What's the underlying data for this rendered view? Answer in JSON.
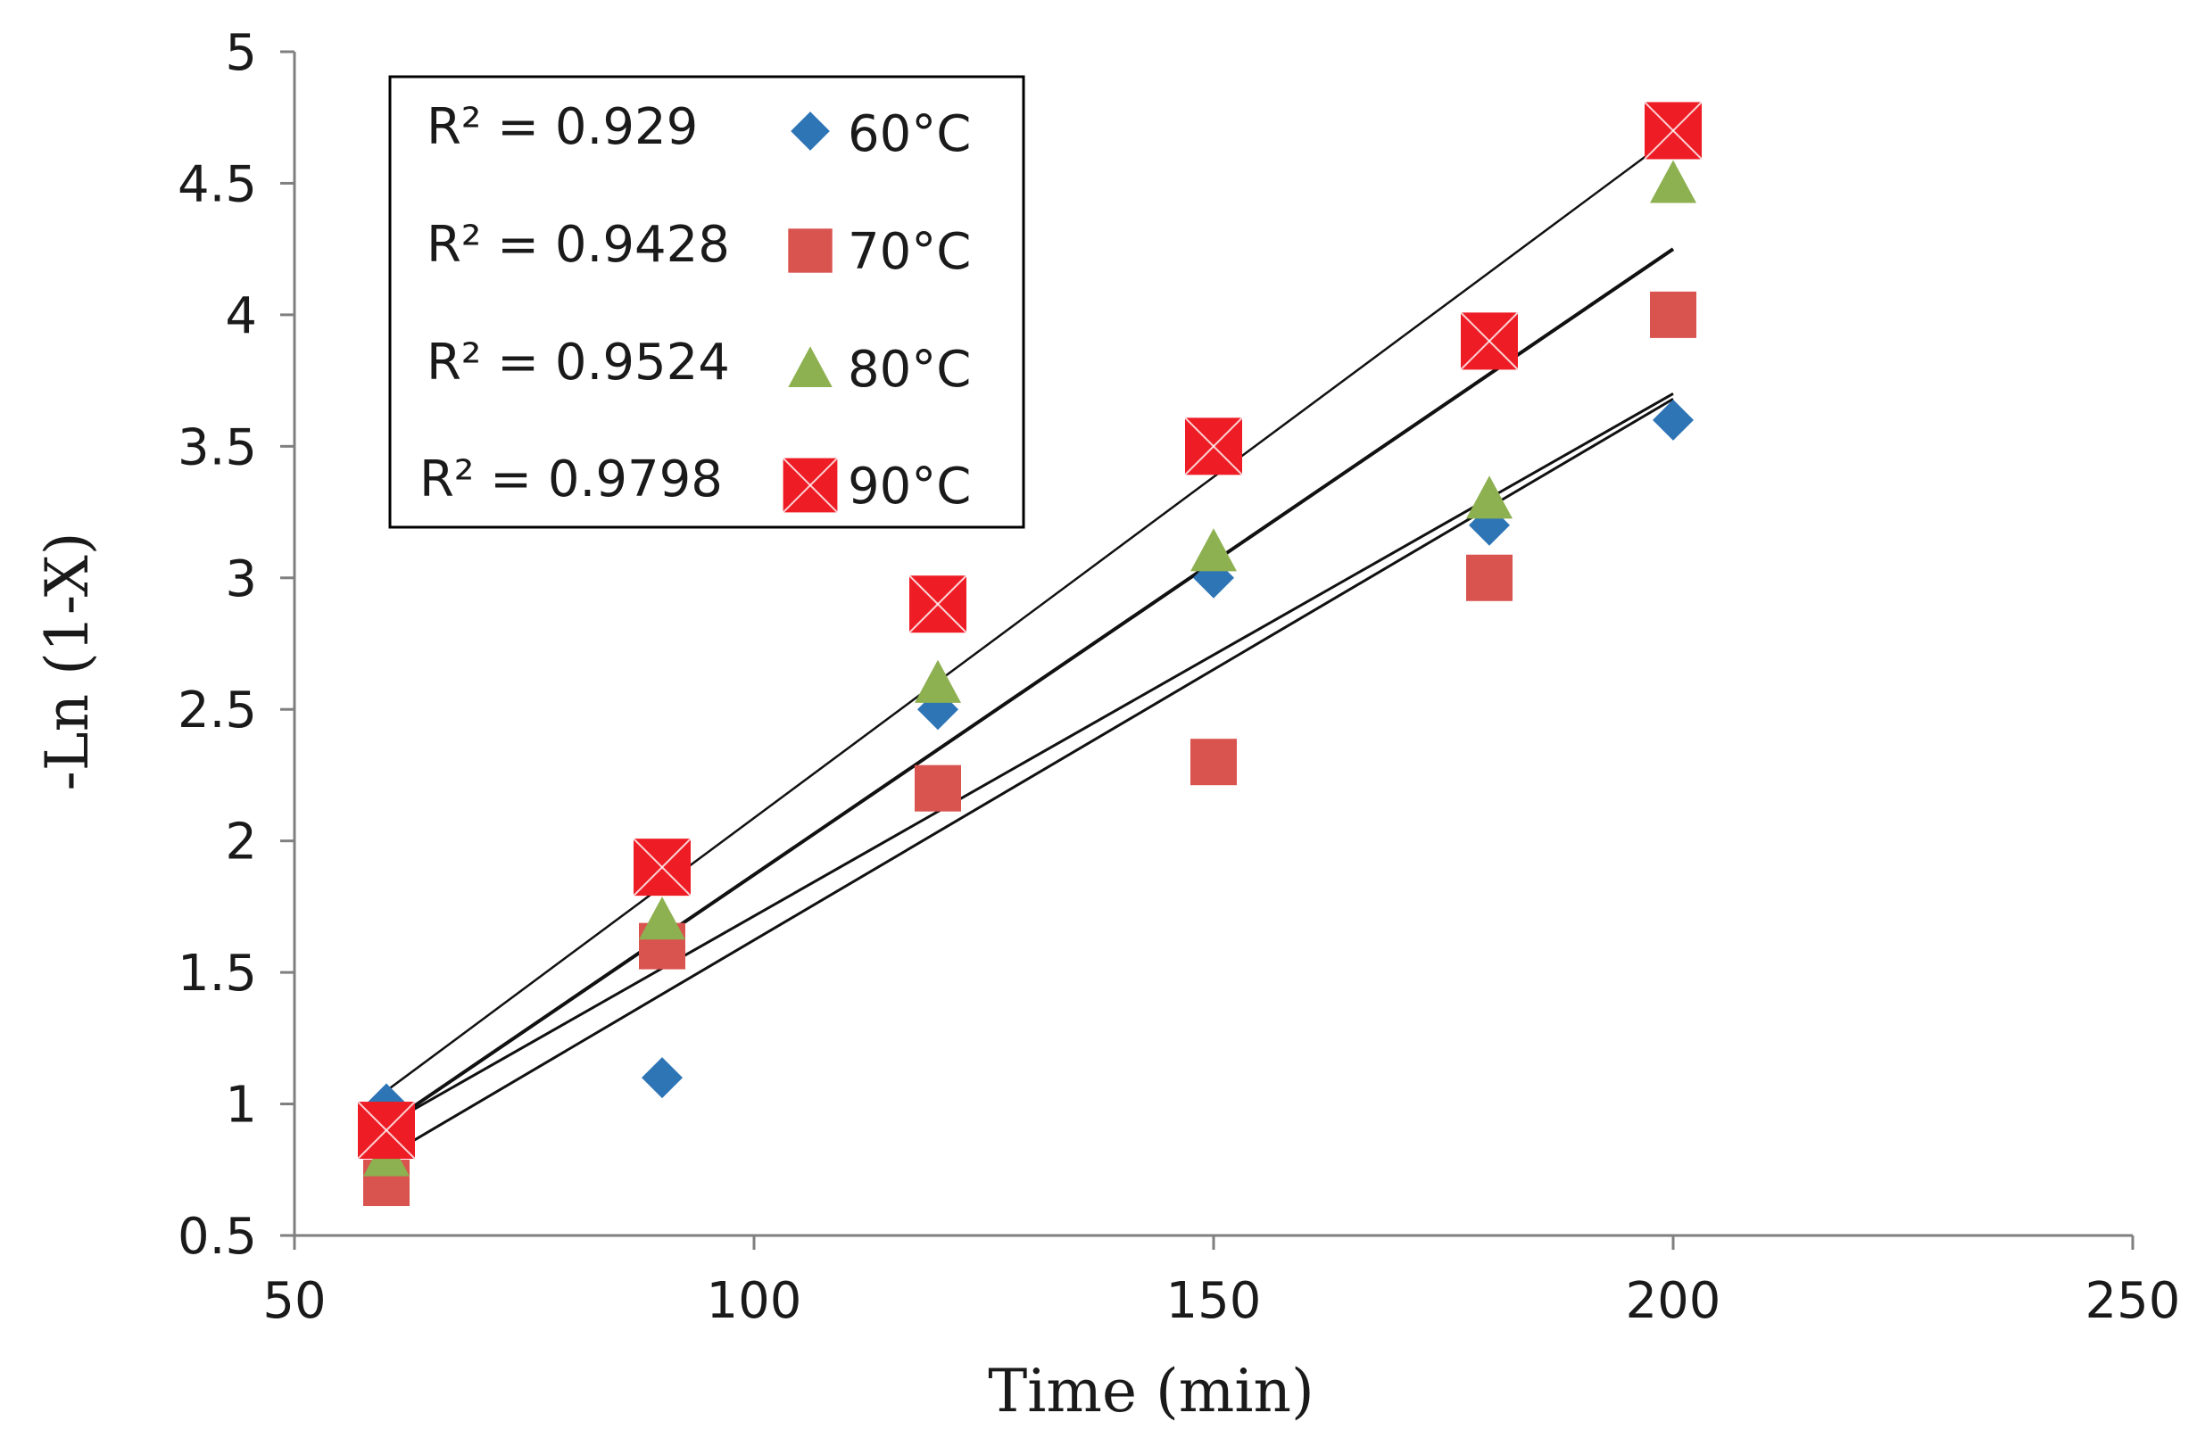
{
  "chart_data": {
    "type": "scatter",
    "xlabel": "Time (min)",
    "ylabel": "-Ln (1-X)",
    "xlim": [
      50,
      250
    ],
    "ylim": [
      0.5,
      5
    ],
    "xticks": [
      50,
      100,
      150,
      200,
      250
    ],
    "yticks": [
      0.5,
      1,
      1.5,
      2,
      2.5,
      3,
      3.5,
      4,
      4.5,
      5
    ],
    "grid": false,
    "legend_position": "top-left",
    "series": [
      {
        "name": "60°C",
        "marker": "diamond",
        "color": "#2e75b6",
        "x": [
          60,
          90,
          120,
          150,
          180,
          200
        ],
        "y": [
          1.0,
          1.1,
          2.5,
          3.0,
          3.2,
          3.6
        ],
        "r2_label": "R² = 0.929",
        "fit_line": {
          "x": [
            60,
            200
          ],
          "y": [
            0.92,
            3.7
          ]
        }
      },
      {
        "name": "70°C",
        "marker": "square",
        "color": "#d9534f",
        "x": [
          60,
          90,
          120,
          150,
          180,
          200
        ],
        "y": [
          0.7,
          1.6,
          2.2,
          2.3,
          3.0,
          4.0
        ],
        "r2_label": "R² = 0.9428",
        "fit_line": {
          "x": [
            60,
            200
          ],
          "y": [
            0.8,
            3.68
          ]
        }
      },
      {
        "name": "80°C",
        "marker": "triangle",
        "color": "#8db050",
        "x": [
          60,
          90,
          120,
          150,
          180,
          200
        ],
        "y": [
          0.8,
          1.7,
          2.6,
          3.1,
          3.3,
          4.5
        ],
        "r2_label": "R² = 0.9524",
        "fit_line": {
          "x": [
            60,
            200
          ],
          "y": [
            0.92,
            4.25
          ]
        }
      },
      {
        "name": "90°C",
        "marker": "square-cross",
        "color": "#ee1c25",
        "x": [
          60,
          90,
          120,
          150,
          180,
          200
        ],
        "y": [
          0.9,
          1.9,
          2.9,
          3.5,
          3.9,
          4.7
        ],
        "r2_label": "R² = 0.9798",
        "fit_line": {
          "x": [
            60,
            200
          ],
          "y": [
            1.05,
            4.68
          ]
        }
      }
    ]
  }
}
